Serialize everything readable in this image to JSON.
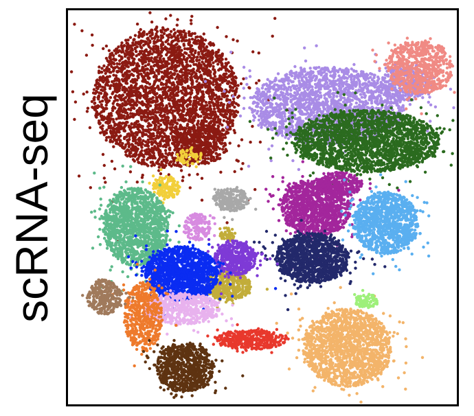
{
  "chart_data": {
    "type": "scatter",
    "title": "",
    "ylabel": "scRNA-seq",
    "xlabel": "",
    "xlim": [
      0,
      1
    ],
    "ylim": [
      0,
      1
    ],
    "grid": false,
    "legend": "none",
    "series": [
      {
        "color": "#8b1a12",
        "clusters": [
          {
            "cx": 0.25,
            "cy": 0.78,
            "rx": 0.19,
            "ry": 0.18,
            "n": 3200
          },
          {
            "cx": 0.34,
            "cy": 0.66,
            "rx": 0.07,
            "ry": 0.05,
            "n": 300
          }
        ]
      },
      {
        "color": "#f2cf3a",
        "clusters": [
          {
            "cx": 0.25,
            "cy": 0.55,
            "rx": 0.035,
            "ry": 0.03,
            "n": 160
          },
          {
            "cx": 0.31,
            "cy": 0.63,
            "rx": 0.03,
            "ry": 0.02,
            "n": 60
          }
        ]
      },
      {
        "color": "#a98ce6",
        "clusters": [
          {
            "cx": 0.67,
            "cy": 0.76,
            "rx": 0.2,
            "ry": 0.1,
            "n": 2000
          },
          {
            "cx": 0.87,
            "cy": 0.82,
            "rx": 0.06,
            "ry": 0.05,
            "n": 300
          }
        ]
      },
      {
        "color": "#f08a84",
        "clusters": [
          {
            "cx": 0.91,
            "cy": 0.86,
            "rx": 0.085,
            "ry": 0.07,
            "n": 700
          }
        ]
      },
      {
        "color": "#2b6b1f",
        "clusters": [
          {
            "cx": 0.77,
            "cy": 0.67,
            "rx": 0.19,
            "ry": 0.08,
            "n": 2200
          }
        ]
      },
      {
        "color": "#a3269c",
        "clusters": [
          {
            "cx": 0.64,
            "cy": 0.5,
            "rx": 0.09,
            "ry": 0.075,
            "n": 1200
          },
          {
            "cx": 0.7,
            "cy": 0.56,
            "rx": 0.06,
            "ry": 0.03,
            "n": 300
          }
        ]
      },
      {
        "color": "#5aaff0",
        "clusters": [
          {
            "cx": 0.82,
            "cy": 0.46,
            "rx": 0.085,
            "ry": 0.08,
            "n": 1100
          }
        ]
      },
      {
        "color": "#23296b",
        "clusters": [
          {
            "cx": 0.63,
            "cy": 0.37,
            "rx": 0.095,
            "ry": 0.065,
            "n": 1200
          }
        ]
      },
      {
        "color": "#a8a8a8",
        "clusters": [
          {
            "cx": 0.42,
            "cy": 0.52,
            "rx": 0.045,
            "ry": 0.03,
            "n": 250
          }
        ]
      },
      {
        "color": "#5dba8a",
        "clusters": [
          {
            "cx": 0.17,
            "cy": 0.45,
            "rx": 0.085,
            "ry": 0.1,
            "n": 1400
          }
        ]
      },
      {
        "color": "#d78be0",
        "clusters": [
          {
            "cx": 0.33,
            "cy": 0.45,
            "rx": 0.035,
            "ry": 0.035,
            "n": 150
          }
        ]
      },
      {
        "color": "#c2ad3a",
        "clusters": [
          {
            "cx": 0.41,
            "cy": 0.43,
            "rx": 0.02,
            "ry": 0.02,
            "n": 50
          },
          {
            "cx": 0.41,
            "cy": 0.3,
            "rx": 0.06,
            "ry": 0.04,
            "n": 450
          }
        ]
      },
      {
        "color": "#7e3ad6",
        "clusters": [
          {
            "cx": 0.43,
            "cy": 0.37,
            "rx": 0.055,
            "ry": 0.045,
            "n": 500
          }
        ]
      },
      {
        "color": "#0a2cf2",
        "clusters": [
          {
            "cx": 0.29,
            "cy": 0.33,
            "rx": 0.095,
            "ry": 0.07,
            "n": 1500
          }
        ]
      },
      {
        "color": "#e8b2ee",
        "clusters": [
          {
            "cx": 0.29,
            "cy": 0.24,
            "rx": 0.1,
            "ry": 0.04,
            "n": 600
          }
        ]
      },
      {
        "color": "#ee7a2c",
        "clusters": [
          {
            "cx": 0.19,
            "cy": 0.22,
            "rx": 0.05,
            "ry": 0.09,
            "n": 500
          }
        ]
      },
      {
        "color": "#a07a5c",
        "clusters": [
          {
            "cx": 0.09,
            "cy": 0.27,
            "rx": 0.045,
            "ry": 0.045,
            "n": 300
          }
        ]
      },
      {
        "color": "#5e3311",
        "clusters": [
          {
            "cx": 0.3,
            "cy": 0.09,
            "rx": 0.075,
            "ry": 0.065,
            "n": 800
          }
        ]
      },
      {
        "color": "#e8382c",
        "clusters": [
          {
            "cx": 0.47,
            "cy": 0.16,
            "rx": 0.09,
            "ry": 0.025,
            "n": 400
          }
        ]
      },
      {
        "color": "#f3b46a",
        "clusters": [
          {
            "cx": 0.72,
            "cy": 0.14,
            "rx": 0.115,
            "ry": 0.1,
            "n": 1600
          }
        ]
      },
      {
        "color": "#9ef07a",
        "clusters": [
          {
            "cx": 0.77,
            "cy": 0.26,
            "rx": 0.03,
            "ry": 0.018,
            "n": 80
          }
        ]
      }
    ]
  }
}
